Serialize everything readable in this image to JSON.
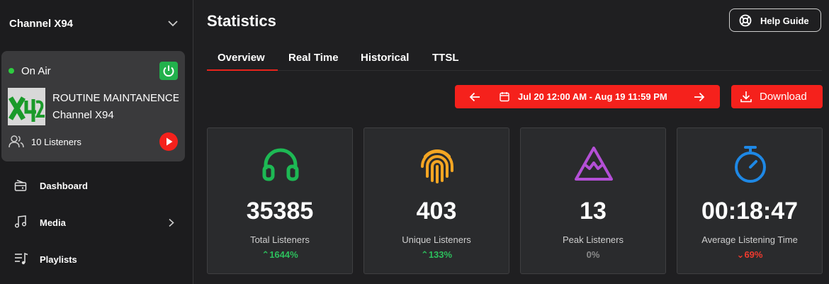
{
  "sidebar": {
    "channel": "Channel X94",
    "status": "On Air",
    "now_playing": {
      "title": "ROUTINE MAINTANENCE",
      "station": "Channel X94"
    },
    "listeners": "10 Listeners",
    "nav": [
      {
        "label": "Dashboard"
      },
      {
        "label": "Media"
      },
      {
        "label": "Playlists"
      }
    ]
  },
  "header": {
    "title": "Statistics",
    "help": "Help Guide"
  },
  "tabs": [
    "Overview",
    "Real Time",
    "Historical",
    "TTSL"
  ],
  "toolbar": {
    "date_range": "Jul 20 12:00 AM - Aug 19 11:59 PM",
    "download": "Download"
  },
  "stats": [
    {
      "value": 35385,
      "label": "Total Listeners",
      "change": "1644%"
    },
    {
      "value": 403,
      "label": "Unique Listeners",
      "change": "133%"
    },
    {
      "value": 13,
      "label": "Peak Listeners",
      "change": "0%"
    },
    {
      "value": "00:18:47",
      "label": "Average Listening Time",
      "change": "69%"
    }
  ]
}
